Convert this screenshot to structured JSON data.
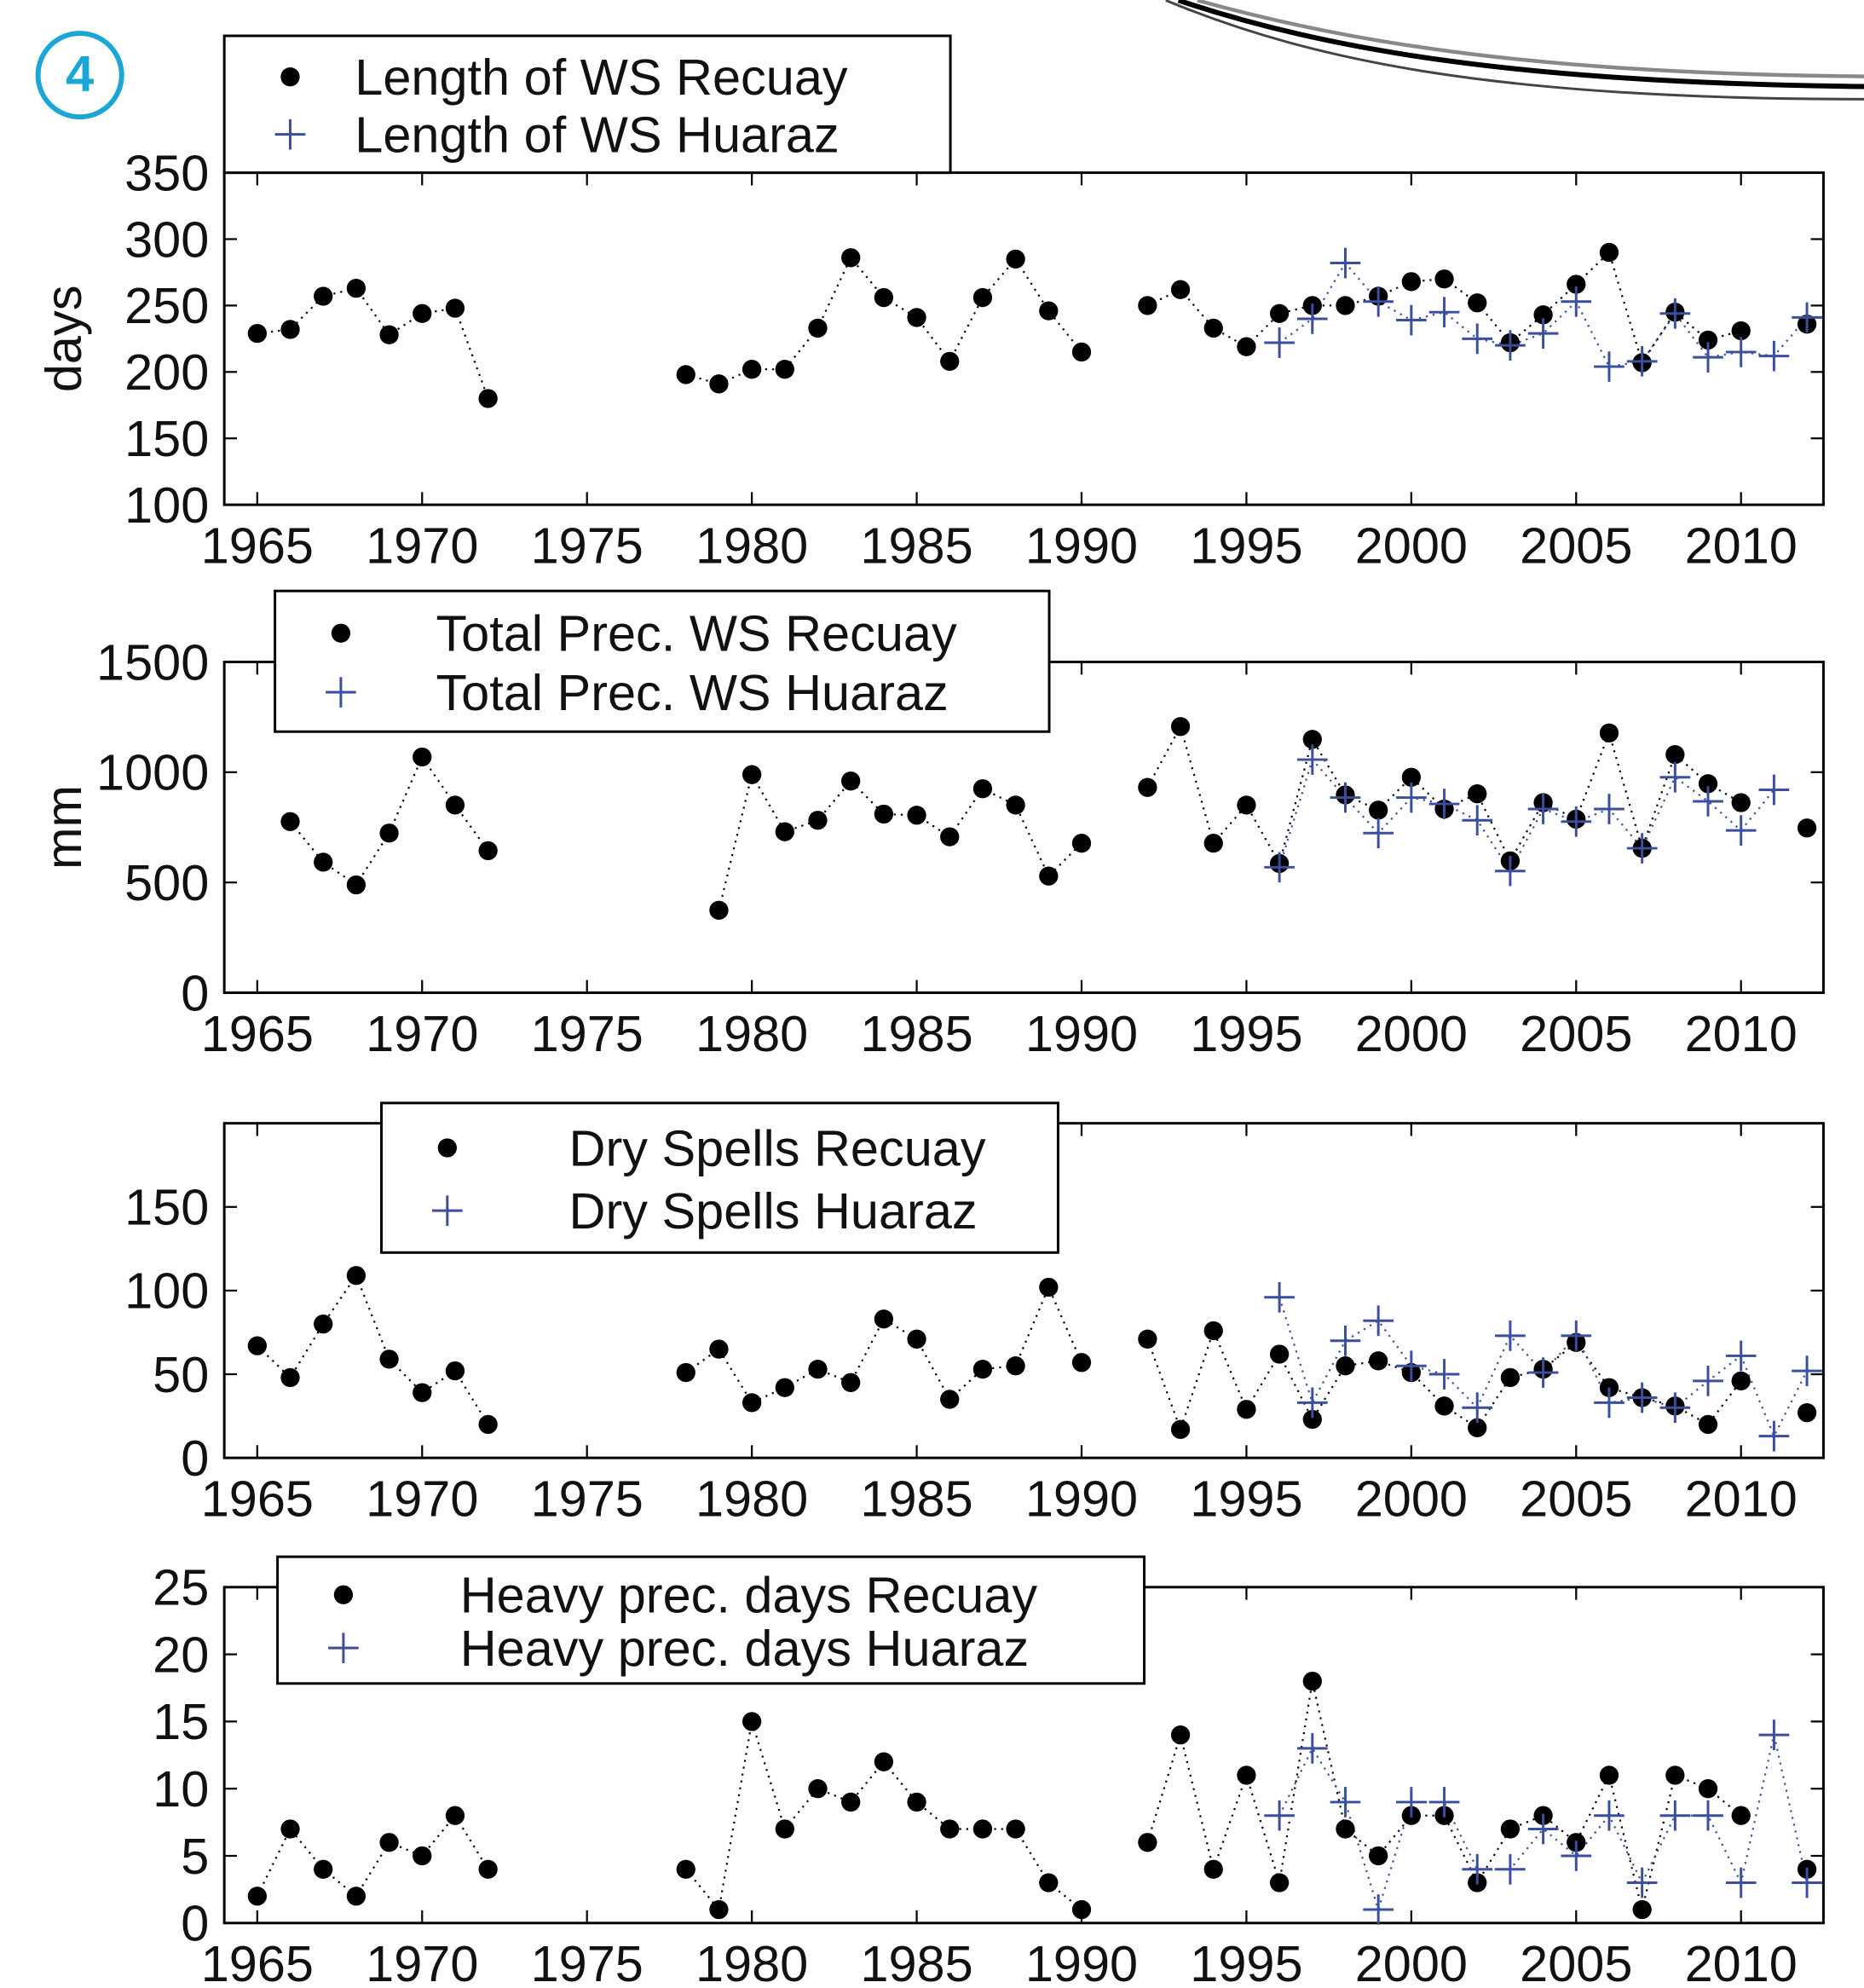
{
  "badge": "4",
  "chart_data": [
    {
      "type": "scatter",
      "ylabel": "days",
      "legend": "upper left",
      "grid": false,
      "x": [
        1965,
        1966,
        1967,
        1968,
        1969,
        1970,
        1971,
        1972,
        1973,
        1974,
        1975,
        1976,
        1977,
        1978,
        1979,
        1980,
        1981,
        1982,
        1983,
        1984,
        1985,
        1986,
        1987,
        1988,
        1989,
        1990,
        1991,
        1992,
        1993,
        1994,
        1995,
        1996,
        1997,
        1998,
        1999,
        2000,
        2001,
        2002,
        2003,
        2004,
        2005,
        2006,
        2007,
        2008,
        2009,
        2010,
        2011,
        2012
      ],
      "xlim": [
        1964,
        2012.5
      ],
      "xticks": [
        1965,
        1970,
        1975,
        1980,
        1985,
        1990,
        1995,
        2000,
        2005,
        2010
      ],
      "ylim": [
        100,
        350
      ],
      "yticks": [
        100,
        150,
        200,
        250,
        300,
        350
      ],
      "series": [
        {
          "name": "Length of WS Recuay",
          "color": "#000000",
          "marker": "circle",
          "values": [
            229,
            232,
            257,
            263,
            228,
            244,
            248,
            180,
            null,
            null,
            null,
            null,
            null,
            198,
            191,
            202,
            202,
            233,
            286,
            256,
            241,
            208,
            256,
            285,
            246,
            215,
            null,
            250,
            262,
            233,
            219,
            244,
            250,
            250,
            257,
            268,
            270,
            252,
            222,
            243,
            266,
            290,
            207,
            245,
            224,
            231,
            null,
            236
          ]
        },
        {
          "name": "Length of WS Huaraz",
          "color": "#3a4f9f",
          "marker": "plus",
          "values": [
            null,
            null,
            null,
            null,
            null,
            null,
            null,
            null,
            null,
            null,
            null,
            null,
            null,
            null,
            null,
            null,
            null,
            null,
            null,
            null,
            null,
            null,
            null,
            null,
            null,
            null,
            null,
            null,
            null,
            null,
            null,
            222,
            240,
            282,
            253,
            239,
            245,
            225,
            220,
            229,
            253,
            204,
            208,
            244,
            211,
            215,
            212,
            241
          ]
        }
      ]
    },
    {
      "type": "scatter",
      "ylabel": "mm",
      "legend": "upper left",
      "grid": false,
      "x": [
        1965,
        1966,
        1967,
        1968,
        1969,
        1970,
        1971,
        1972,
        1973,
        1974,
        1975,
        1976,
        1977,
        1978,
        1979,
        1980,
        1981,
        1982,
        1983,
        1984,
        1985,
        1986,
        1987,
        1988,
        1989,
        1990,
        1991,
        1992,
        1993,
        1994,
        1995,
        1996,
        1997,
        1998,
        1999,
        2000,
        2001,
        2002,
        2003,
        2004,
        2005,
        2006,
        2007,
        2008,
        2009,
        2010,
        2011,
        2012
      ],
      "xlim": [
        1964,
        2012.5
      ],
      "xticks": [
        1965,
        1970,
        1975,
        1980,
        1985,
        1990,
        1995,
        2000,
        2005,
        2010
      ],
      "ylim": [
        0,
        1500
      ],
      "yticks": [
        0,
        500,
        1000,
        1500
      ],
      "series": [
        {
          "name": "Total Prec. WS Recuay",
          "color": "#000000",
          "marker": "circle",
          "values": [
            null,
            776,
            592,
            489,
            724,
            1069,
            851,
            644,
            null,
            null,
            null,
            null,
            null,
            null,
            374,
            989,
            730,
            782,
            960,
            810,
            805,
            707,
            925,
            851,
            529,
            678,
            null,
            931,
            1207,
            678,
            851,
            586,
            1149,
            897,
            828,
            977,
            833,
            902,
            598,
            862,
            787,
            1178,
            655,
            1080,
            948,
            862,
            null,
            747
          ]
        },
        {
          "name": "Total Prec. WS Huaraz",
          "color": "#3a4f9f",
          "marker": "plus",
          "values": [
            null,
            null,
            null,
            null,
            null,
            null,
            null,
            null,
            null,
            null,
            null,
            null,
            null,
            null,
            null,
            null,
            null,
            null,
            null,
            null,
            null,
            null,
            null,
            null,
            null,
            null,
            null,
            null,
            null,
            null,
            null,
            569,
            1057,
            885,
            724,
            885,
            856,
            782,
            552,
            833,
            776,
            833,
            655,
            977,
            868,
            736,
            920,
            null
          ]
        }
      ]
    },
    {
      "type": "scatter",
      "legend": "upper left",
      "grid": false,
      "x": [
        1965,
        1966,
        1967,
        1968,
        1969,
        1970,
        1971,
        1972,
        1973,
        1974,
        1975,
        1976,
        1977,
        1978,
        1979,
        1980,
        1981,
        1982,
        1983,
        1984,
        1985,
        1986,
        1987,
        1988,
        1989,
        1990,
        1991,
        1992,
        1993,
        1994,
        1995,
        1996,
        1997,
        1998,
        1999,
        2000,
        2001,
        2002,
        2003,
        2004,
        2005,
        2006,
        2007,
        2008,
        2009,
        2010,
        2011,
        2012
      ],
      "xlim": [
        1964,
        2012.5
      ],
      "xticks": [
        1965,
        1970,
        1975,
        1980,
        1985,
        1990,
        1995,
        2000,
        2005,
        2010
      ],
      "ylim": [
        0,
        200
      ],
      "yticks": [
        0,
        50,
        100,
        150
      ],
      "series": [
        {
          "name": "Dry Spells Recuay",
          "color": "#000000",
          "marker": "circle",
          "values": [
            67,
            48,
            80,
            109,
            59,
            39,
            52,
            20,
            null,
            null,
            null,
            null,
            null,
            51,
            65,
            33,
            42,
            53,
            45,
            83,
            71,
            35,
            53,
            55,
            102,
            57,
            null,
            71,
            17,
            76,
            29,
            62,
            23,
            55,
            58,
            51,
            31,
            18,
            48,
            53,
            69,
            42,
            36,
            31,
            20,
            46,
            null,
            27
          ]
        },
        {
          "name": "Dry Spells Huaraz",
          "color": "#3a4f9f",
          "marker": "plus",
          "values": [
            null,
            null,
            null,
            null,
            null,
            null,
            null,
            null,
            null,
            null,
            null,
            null,
            null,
            null,
            null,
            null,
            null,
            null,
            null,
            null,
            null,
            null,
            null,
            null,
            null,
            null,
            null,
            null,
            null,
            null,
            null,
            96,
            33,
            70,
            82,
            55,
            50,
            30,
            73,
            51,
            73,
            33,
            36,
            30,
            46,
            61,
            13,
            52
          ]
        }
      ]
    },
    {
      "type": "scatter",
      "legend": "upper left",
      "grid": false,
      "x": [
        1965,
        1966,
        1967,
        1968,
        1969,
        1970,
        1971,
        1972,
        1973,
        1974,
        1975,
        1976,
        1977,
        1978,
        1979,
        1980,
        1981,
        1982,
        1983,
        1984,
        1985,
        1986,
        1987,
        1988,
        1989,
        1990,
        1991,
        1992,
        1993,
        1994,
        1995,
        1996,
        1997,
        1998,
        1999,
        2000,
        2001,
        2002,
        2003,
        2004,
        2005,
        2006,
        2007,
        2008,
        2009,
        2010,
        2011,
        2012
      ],
      "xlim": [
        1964,
        2012.5
      ],
      "xticks": [
        1965,
        1970,
        1975,
        1980,
        1985,
        1990,
        1995,
        2000,
        2005,
        2010
      ],
      "ylim": [
        0,
        25
      ],
      "yticks": [
        0,
        5,
        10,
        15,
        20,
        25
      ],
      "series": [
        {
          "name": "Heavy prec. days Recuay",
          "color": "#000000",
          "marker": "circle",
          "values": [
            2,
            7,
            4,
            2,
            6,
            5,
            8,
            4,
            null,
            null,
            null,
            null,
            null,
            4,
            1,
            15,
            7,
            10,
            9,
            12,
            9,
            7,
            7,
            7,
            3,
            1,
            null,
            6,
            14,
            4,
            11,
            3,
            18,
            7,
            5,
            8,
            8,
            3,
            7,
            8,
            6,
            11,
            1,
            11,
            10,
            8,
            null,
            4
          ]
        },
        {
          "name": "Heavy prec. days Huaraz",
          "color": "#3a4f9f",
          "marker": "plus",
          "values": [
            null,
            null,
            null,
            null,
            null,
            null,
            null,
            null,
            null,
            null,
            null,
            null,
            null,
            null,
            null,
            null,
            null,
            null,
            null,
            null,
            null,
            null,
            null,
            null,
            null,
            null,
            null,
            null,
            null,
            null,
            null,
            8,
            13,
            9,
            1,
            9,
            9,
            4,
            4,
            7,
            5,
            8,
            3,
            8,
            8,
            3,
            14,
            3
          ]
        }
      ]
    }
  ]
}
